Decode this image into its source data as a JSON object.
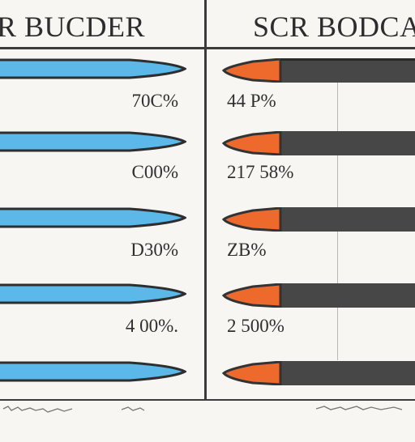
{
  "headers": {
    "left": "R BUCDER",
    "right": "SCR BODCA"
  },
  "rows": [
    {
      "left_value": "70C%",
      "right_value": "44 P%"
    },
    {
      "left_value": "C00%",
      "right_value": "217 58%"
    },
    {
      "left_value": "D30%",
      "right_value": "ZB%"
    },
    {
      "left_value": "4 00%.",
      "right_value": "2 500%"
    }
  ],
  "colors": {
    "blue_fill": "#5bb8e8",
    "blue_outline": "#2e2e2e",
    "dark_fill": "#474747",
    "orange_tip": "#ee6a2c",
    "background": "#f7f6f2"
  }
}
